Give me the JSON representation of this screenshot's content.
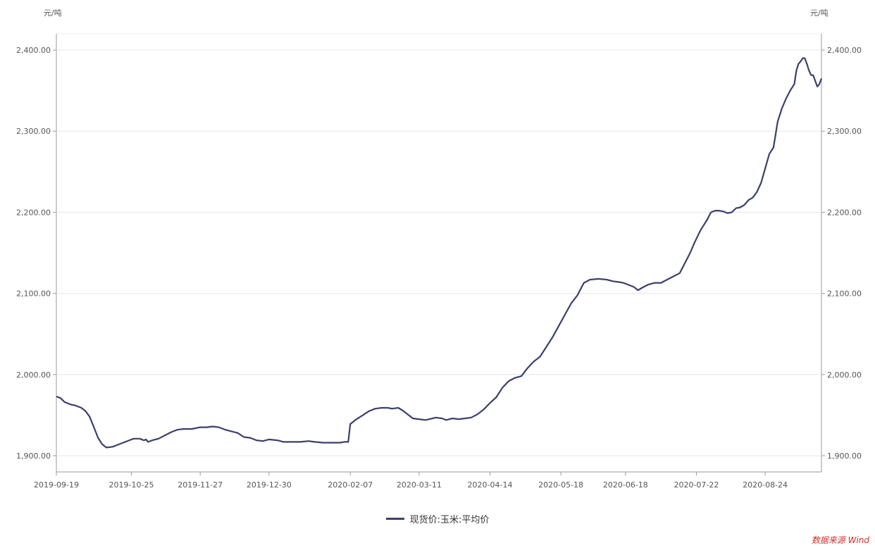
{
  "chart_data": {
    "type": "line",
    "y_unit_left": "元/吨",
    "y_unit_right": "元/吨",
    "ylim": [
      1880,
      2420
    ],
    "y_ticks": [
      1900,
      2000,
      2100,
      2200,
      2300,
      2400
    ],
    "y_tick_labels": [
      "1,900.00",
      "2,000.00",
      "2,100.00",
      "2,200.00",
      "2,300.00",
      "2,400.00"
    ],
    "x_ticks": [
      "2019-09-19",
      "2019-10-25",
      "2019-11-27",
      "2019-12-30",
      "2020-02-07",
      "2020-03-11",
      "2020-04-14",
      "2020-05-18",
      "2020-06-18",
      "2020-07-22",
      "2020-08-24"
    ],
    "xlim": [
      "2019-09-19",
      "2020-09-20"
    ],
    "grid": true,
    "legend_position": "bottom-center",
    "series": [
      {
        "name": "现货价:玉米:平均价",
        "color": "#3b3f6e",
        "points": [
          [
            "2019-09-19",
            1973
          ],
          [
            "2019-09-21",
            1971
          ],
          [
            "2019-09-23",
            1966
          ],
          [
            "2019-09-26",
            1963
          ],
          [
            "2019-09-28",
            1962
          ],
          [
            "2019-10-01",
            1959
          ],
          [
            "2019-10-03",
            1955
          ],
          [
            "2019-10-05",
            1948
          ],
          [
            "2019-10-07",
            1935
          ],
          [
            "2019-10-09",
            1922
          ],
          [
            "2019-10-11",
            1914
          ],
          [
            "2019-10-13",
            1910
          ],
          [
            "2019-10-16",
            1911
          ],
          [
            "2019-10-18",
            1913
          ],
          [
            "2019-10-21",
            1916
          ],
          [
            "2019-10-24",
            1919
          ],
          [
            "2019-10-26",
            1921
          ],
          [
            "2019-10-29",
            1921
          ],
          [
            "2019-10-31",
            1919
          ],
          [
            "2019-11-01",
            1920
          ],
          [
            "2019-11-02",
            1917
          ],
          [
            "2019-11-04",
            1919
          ],
          [
            "2019-11-07",
            1921
          ],
          [
            "2019-11-10",
            1925
          ],
          [
            "2019-11-13",
            1929
          ],
          [
            "2019-11-16",
            1932
          ],
          [
            "2019-11-19",
            1933
          ],
          [
            "2019-11-23",
            1933
          ],
          [
            "2019-11-27",
            1935
          ],
          [
            "2019-11-30",
            1935
          ],
          [
            "2019-12-03",
            1936
          ],
          [
            "2019-12-06",
            1935
          ],
          [
            "2019-12-09",
            1932
          ],
          [
            "2019-12-12",
            1930
          ],
          [
            "2019-12-15",
            1928
          ],
          [
            "2019-12-18",
            1923
          ],
          [
            "2019-12-21",
            1922
          ],
          [
            "2019-12-24",
            1919
          ],
          [
            "2019-12-27",
            1918
          ],
          [
            "2019-12-30",
            1920
          ],
          [
            "2020-01-03",
            1919
          ],
          [
            "2020-01-06",
            1917
          ],
          [
            "2020-01-10",
            1917
          ],
          [
            "2020-01-14",
            1917
          ],
          [
            "2020-01-18",
            1918
          ],
          [
            "2020-01-21",
            1917
          ],
          [
            "2020-01-25",
            1916
          ],
          [
            "2020-01-29",
            1916
          ],
          [
            "2020-02-02",
            1916
          ],
          [
            "2020-02-04",
            1917
          ],
          [
            "2020-02-06",
            1917
          ],
          [
            "2020-02-07",
            1939
          ],
          [
            "2020-02-10",
            1945
          ],
          [
            "2020-02-13",
            1950
          ],
          [
            "2020-02-16",
            1955
          ],
          [
            "2020-02-19",
            1958
          ],
          [
            "2020-02-22",
            1959
          ],
          [
            "2020-02-25",
            1959
          ],
          [
            "2020-02-27",
            1958
          ],
          [
            "2020-03-01",
            1959
          ],
          [
            "2020-03-03",
            1956
          ],
          [
            "2020-03-06",
            1950
          ],
          [
            "2020-03-08",
            1946
          ],
          [
            "2020-03-11",
            1945
          ],
          [
            "2020-03-14",
            1944
          ],
          [
            "2020-03-16",
            1945
          ],
          [
            "2020-03-19",
            1947
          ],
          [
            "2020-03-22",
            1946
          ],
          [
            "2020-03-24",
            1944
          ],
          [
            "2020-03-27",
            1946
          ],
          [
            "2020-03-30",
            1945
          ],
          [
            "2020-04-02",
            1946
          ],
          [
            "2020-04-05",
            1947
          ],
          [
            "2020-04-08",
            1951
          ],
          [
            "2020-04-11",
            1957
          ],
          [
            "2020-04-14",
            1965
          ],
          [
            "2020-04-17",
            1972
          ],
          [
            "2020-04-20",
            1984
          ],
          [
            "2020-04-23",
            1992
          ],
          [
            "2020-04-26",
            1996
          ],
          [
            "2020-04-29",
            1998
          ],
          [
            "2020-05-02",
            2008
          ],
          [
            "2020-05-05",
            2016
          ],
          [
            "2020-05-08",
            2022
          ],
          [
            "2020-05-11",
            2034
          ],
          [
            "2020-05-14",
            2046
          ],
          [
            "2020-05-17",
            2060
          ],
          [
            "2020-05-20",
            2074
          ],
          [
            "2020-05-23",
            2088
          ],
          [
            "2020-05-26",
            2098
          ],
          [
            "2020-05-29",
            2113
          ],
          [
            "2020-06-01",
            2117
          ],
          [
            "2020-06-05",
            2118
          ],
          [
            "2020-06-09",
            2117
          ],
          [
            "2020-06-12",
            2115
          ],
          [
            "2020-06-15",
            2114
          ],
          [
            "2020-06-17",
            2113
          ],
          [
            "2020-06-19",
            2111
          ],
          [
            "2020-06-22",
            2108
          ],
          [
            "2020-06-24",
            2104
          ],
          [
            "2020-06-26",
            2107
          ],
          [
            "2020-06-29",
            2111
          ],
          [
            "2020-07-02",
            2113
          ],
          [
            "2020-07-05",
            2113
          ],
          [
            "2020-07-08",
            2117
          ],
          [
            "2020-07-11",
            2121
          ],
          [
            "2020-07-14",
            2125
          ],
          [
            "2020-07-17",
            2140
          ],
          [
            "2020-07-19",
            2150
          ],
          [
            "2020-07-21",
            2162
          ],
          [
            "2020-07-24",
            2178
          ],
          [
            "2020-07-27",
            2190
          ],
          [
            "2020-07-29",
            2200
          ],
          [
            "2020-07-31",
            2202
          ],
          [
            "2020-08-02",
            2202
          ],
          [
            "2020-08-04",
            2201
          ],
          [
            "2020-08-06",
            2199
          ],
          [
            "2020-08-08",
            2200
          ],
          [
            "2020-08-10",
            2205
          ],
          [
            "2020-08-12",
            2206
          ],
          [
            "2020-08-14",
            2209
          ],
          [
            "2020-08-16",
            2215
          ],
          [
            "2020-08-18",
            2218
          ],
          [
            "2020-08-20",
            2225
          ],
          [
            "2020-08-22",
            2236
          ],
          [
            "2020-08-24",
            2254
          ],
          [
            "2020-08-26",
            2272
          ],
          [
            "2020-08-28",
            2280
          ],
          [
            "2020-08-30",
            2312
          ],
          [
            "2020-09-01",
            2328
          ],
          [
            "2020-09-03",
            2340
          ],
          [
            "2020-09-05",
            2350
          ],
          [
            "2020-09-07",
            2358
          ],
          [
            "2020-09-08",
            2375
          ],
          [
            "2020-09-09",
            2383
          ],
          [
            "2020-09-10",
            2386
          ],
          [
            "2020-09-11",
            2390
          ],
          [
            "2020-09-12",
            2390
          ],
          [
            "2020-09-13",
            2383
          ],
          [
            "2020-09-14",
            2375
          ],
          [
            "2020-09-15",
            2369
          ],
          [
            "2020-09-16",
            2369
          ],
          [
            "2020-09-17",
            2362
          ],
          [
            "2020-09-18",
            2355
          ],
          [
            "2020-09-19",
            2358
          ],
          [
            "2020-09-20",
            2365
          ]
        ]
      }
    ],
    "x_ticks_axis": [
      "2019-09-19",
      "2019-10-25",
      "2019-11-27",
      "2019-12-30",
      "2020-02-07",
      "2020-03-11",
      "2020-04-14",
      "2020-05-18",
      "2020-06-18",
      "2020-07-22",
      "2020-08-24"
    ]
  },
  "legend": {
    "label": "现货价:玉米:平均价"
  },
  "source": "数据来源 Wind"
}
